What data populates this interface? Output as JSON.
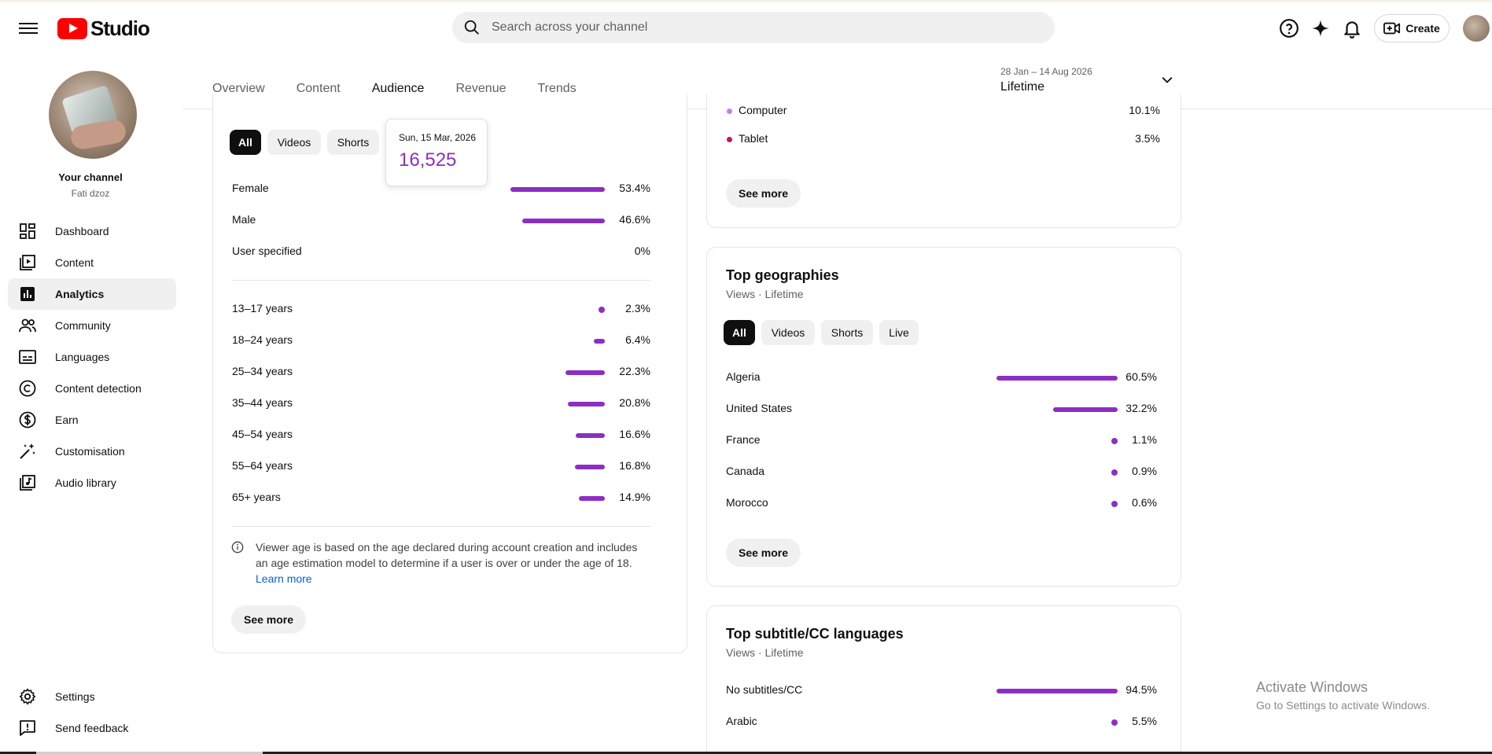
{
  "app": {
    "logo_text": "Studio"
  },
  "search": {
    "placeholder": "Search across your channel"
  },
  "header": {
    "create_label": "Create"
  },
  "channel": {
    "title": "Your channel",
    "name": "Fati dzoz"
  },
  "sidebar": {
    "items": [
      {
        "label": "Dashboard",
        "icon": "dashboard-icon"
      },
      {
        "label": "Content",
        "icon": "content-icon"
      },
      {
        "label": "Analytics",
        "icon": "analytics-icon",
        "active": true
      },
      {
        "label": "Community",
        "icon": "community-icon"
      },
      {
        "label": "Languages",
        "icon": "languages-icon"
      },
      {
        "label": "Content detection",
        "icon": "content-detection-icon"
      },
      {
        "label": "Earn",
        "icon": "earn-icon"
      },
      {
        "label": "Customisation",
        "icon": "customisation-icon"
      },
      {
        "label": "Audio library",
        "icon": "audio-library-icon"
      }
    ],
    "bottom": [
      {
        "label": "Settings",
        "icon": "gear-icon"
      },
      {
        "label": "Send feedback",
        "icon": "feedback-icon"
      }
    ]
  },
  "tabs": [
    {
      "label": "Overview"
    },
    {
      "label": "Content"
    },
    {
      "label": "Audience",
      "active": true
    },
    {
      "label": "Revenue"
    },
    {
      "label": "Trends"
    }
  ],
  "date_range": {
    "range": "28 Jan – 14 Aug 2026",
    "label": "Lifetime"
  },
  "demographics": {
    "chips": [
      "All",
      "Videos",
      "Shorts"
    ],
    "tooltip": {
      "date": "Sun, 15 Mar, 2026",
      "value": "16,525"
    },
    "gender": [
      {
        "label": "Female",
        "value": "53.4%",
        "pct": 53.4
      },
      {
        "label": "Male",
        "value": "46.6%",
        "pct": 46.6
      },
      {
        "label": "User specified",
        "value": "0%",
        "pct": 0
      }
    ],
    "age": [
      {
        "label": "13–17 years",
        "value": "2.3%",
        "pct": 2.3
      },
      {
        "label": "18–24 years",
        "value": "6.4%",
        "pct": 6.4
      },
      {
        "label": "25–34 years",
        "value": "22.3%",
        "pct": 22.3
      },
      {
        "label": "35–44 years",
        "value": "20.8%",
        "pct": 20.8
      },
      {
        "label": "45–54 years",
        "value": "16.6%",
        "pct": 16.6
      },
      {
        "label": "55–64 years",
        "value": "16.8%",
        "pct": 16.8
      },
      {
        "label": "65+ years",
        "value": "14.9%",
        "pct": 14.9
      }
    ],
    "note": "Viewer age is based on the age declared during account creation and includes an age estimation model to determine if a user is over or under the age of 18.",
    "learn_more": "Learn more",
    "see_more": "See more"
  },
  "devices": {
    "rows": [
      {
        "label": "Computer",
        "value": "10.1%",
        "color": "#c77dea"
      },
      {
        "label": "Tablet",
        "value": "3.5%",
        "color": "#c2185b"
      }
    ],
    "see_more": "See more"
  },
  "geographies": {
    "title": "Top geographies",
    "subtitle": "Views · Lifetime",
    "chips": [
      "All",
      "Videos",
      "Shorts",
      "Live"
    ],
    "rows": [
      {
        "label": "Algeria",
        "value": "60.5%",
        "pct": 60.5
      },
      {
        "label": "United States",
        "value": "32.2%",
        "pct": 32.2
      },
      {
        "label": "France",
        "value": "1.1%",
        "pct": 1.1
      },
      {
        "label": "Canada",
        "value": "0.9%",
        "pct": 0.9
      },
      {
        "label": "Morocco",
        "value": "0.6%",
        "pct": 0.6
      }
    ],
    "see_more": "See more"
  },
  "subtitles": {
    "title": "Top subtitle/CC languages",
    "subtitle": "Views · Lifetime",
    "rows": [
      {
        "label": "No subtitles/CC",
        "value": "94.5%",
        "pct": 94.5
      },
      {
        "label": "Arabic",
        "value": "5.5%",
        "pct": 5.5
      }
    ]
  },
  "watermark": {
    "line1": "Activate Windows",
    "line2": "Go to Settings to activate Windows."
  },
  "colors": {
    "accent": "#8c2ec4",
    "link": "#065fd4",
    "brand": "#ff0000"
  }
}
